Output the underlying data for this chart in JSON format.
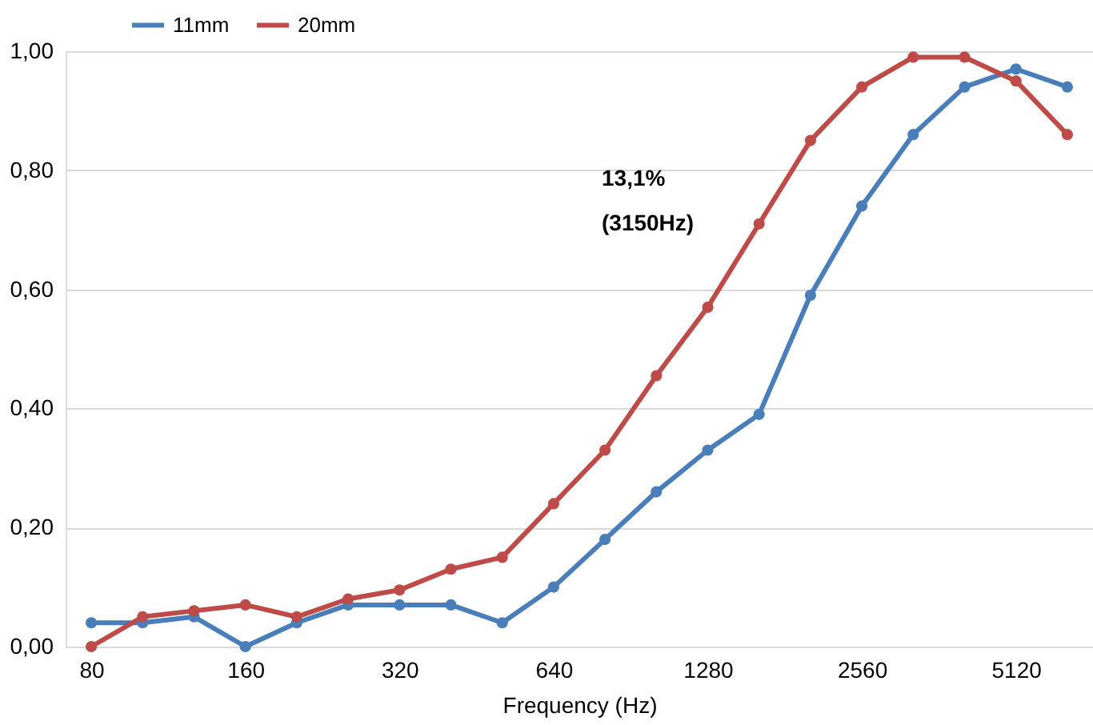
{
  "chart_data": {
    "type": "line",
    "xlabel": "Frequency (Hz)",
    "categories": [
      "80",
      null,
      null,
      "160",
      null,
      null,
      "320",
      null,
      null,
      "640",
      null,
      null,
      "1280",
      null,
      null,
      "2560",
      null,
      null,
      "5120",
      null
    ],
    "series": [
      {
        "name": "11mm",
        "color": "#4a7ebb",
        "values": [
          0.04,
          0.04,
          0.05,
          0.0,
          0.04,
          0.07,
          0.07,
          0.07,
          0.04,
          0.1,
          0.18,
          0.26,
          0.33,
          0.39,
          0.59,
          0.74,
          0.86,
          0.94,
          0.97,
          0.94
        ]
      },
      {
        "name": "20mm",
        "color": "#be4b48",
        "values": [
          0.0,
          0.05,
          0.06,
          0.07,
          0.05,
          0.08,
          0.095,
          0.13,
          0.15,
          0.24,
          0.33,
          0.455,
          0.57,
          0.71,
          0.85,
          0.94,
          0.99,
          0.99,
          0.95,
          0.86
        ]
      }
    ],
    "ylim": [
      0,
      1.0
    ],
    "yticks": [
      {
        "value": 0,
        "label": "0,00"
      },
      {
        "value": 0.2,
        "label": "0,20"
      },
      {
        "value": 0.4,
        "label": "0,40"
      },
      {
        "value": 0.6,
        "label": "0,60"
      },
      {
        "value": 0.8,
        "label": "0,80"
      },
      {
        "value": 1.0,
        "label": "1,00"
      }
    ],
    "grid": "y",
    "legend": "top left",
    "marker": "circle",
    "line_style": "solid",
    "annotations": [
      "13,1%",
      "(3150Hz)"
    ]
  }
}
